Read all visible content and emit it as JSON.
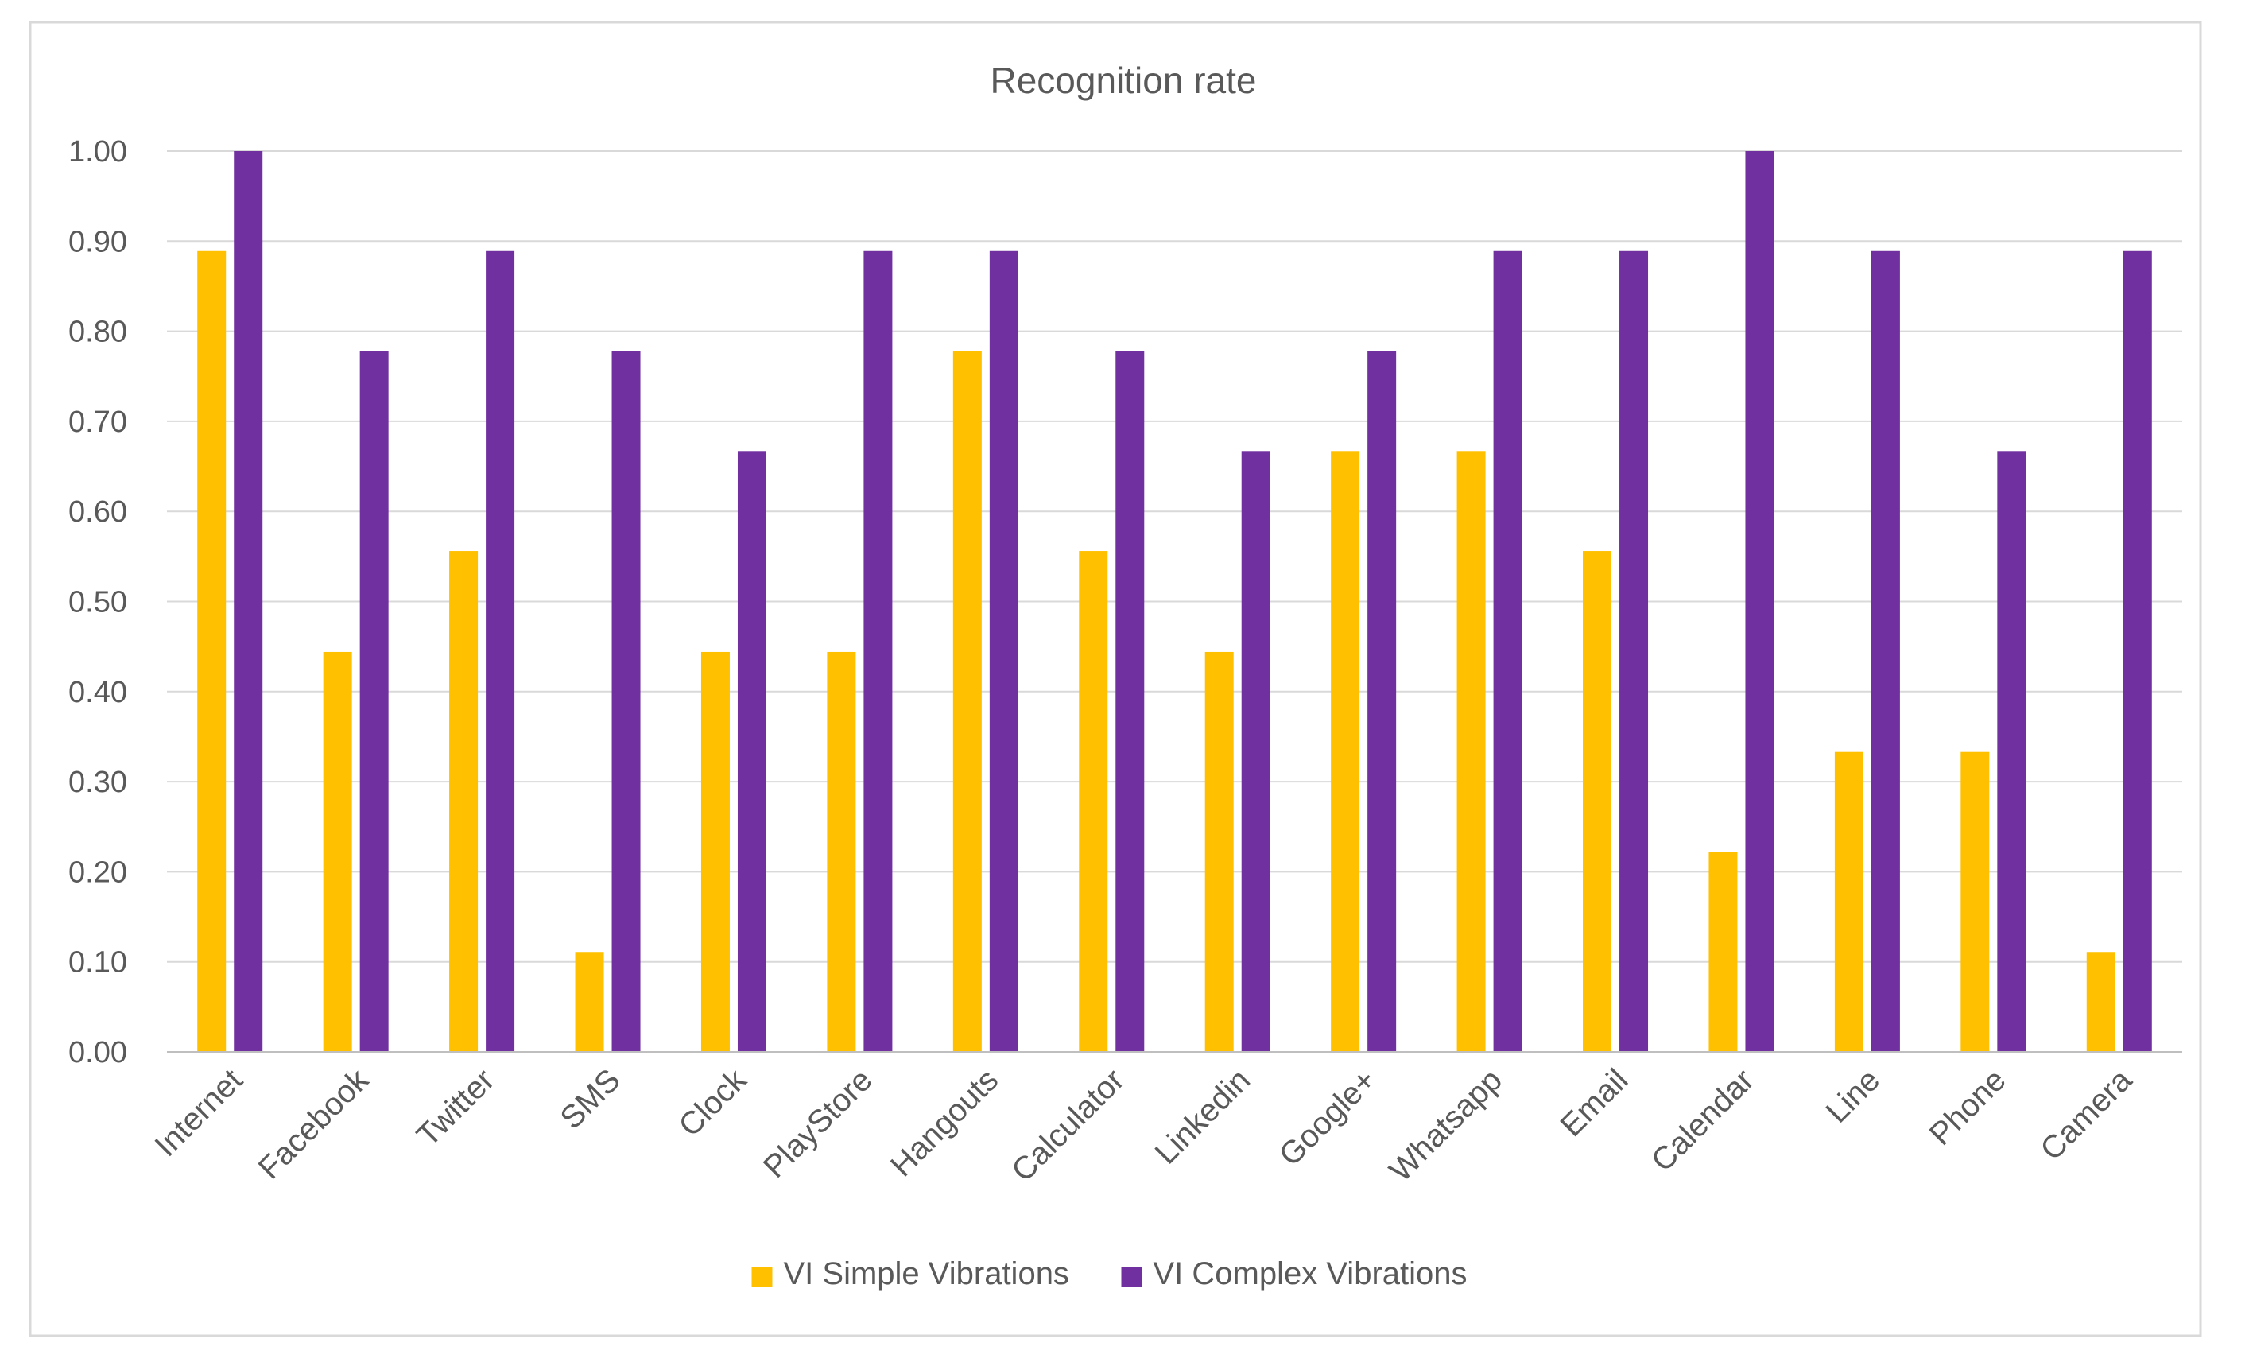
{
  "chart_data": {
    "type": "bar",
    "title": "Recognition rate",
    "xlabel": "",
    "ylabel": "",
    "ylim": [
      0,
      1
    ],
    "ytick_step": 0.1,
    "ytick_labels": [
      "0.00",
      "0.10",
      "0.20",
      "0.30",
      "0.40",
      "0.50",
      "0.60",
      "0.70",
      "0.80",
      "0.90",
      "1.00"
    ],
    "grid": true,
    "legend_position": "bottom",
    "categories": [
      "Internet",
      "Facebook",
      "Twitter",
      "SMS",
      "Clock",
      "PlayStore",
      "Hangouts",
      "Calculator",
      "Linkedin",
      "Google+",
      "Whatsapp",
      "Email",
      "Calendar",
      "Line",
      "Phone",
      "Camera"
    ],
    "series": [
      {
        "name": "VI Simple Vibrations",
        "color": "#FFC000",
        "values": [
          0.889,
          0.444,
          0.556,
          0.111,
          0.444,
          0.444,
          0.778,
          0.556,
          0.444,
          0.667,
          0.667,
          0.556,
          0.222,
          0.333,
          0.333,
          0.111
        ]
      },
      {
        "name": "VI Complex Vibrations",
        "color": "#7030A0",
        "values": [
          1.0,
          0.778,
          0.889,
          0.778,
          0.667,
          0.889,
          0.889,
          0.778,
          0.667,
          0.778,
          0.889,
          0.889,
          1.0,
          0.889,
          0.667,
          0.889
        ]
      }
    ],
    "colors": {
      "border": "#D9D9D9",
      "grid": "#D9D9D9",
      "axis": "#BFBFBF",
      "text": "#595959"
    }
  }
}
